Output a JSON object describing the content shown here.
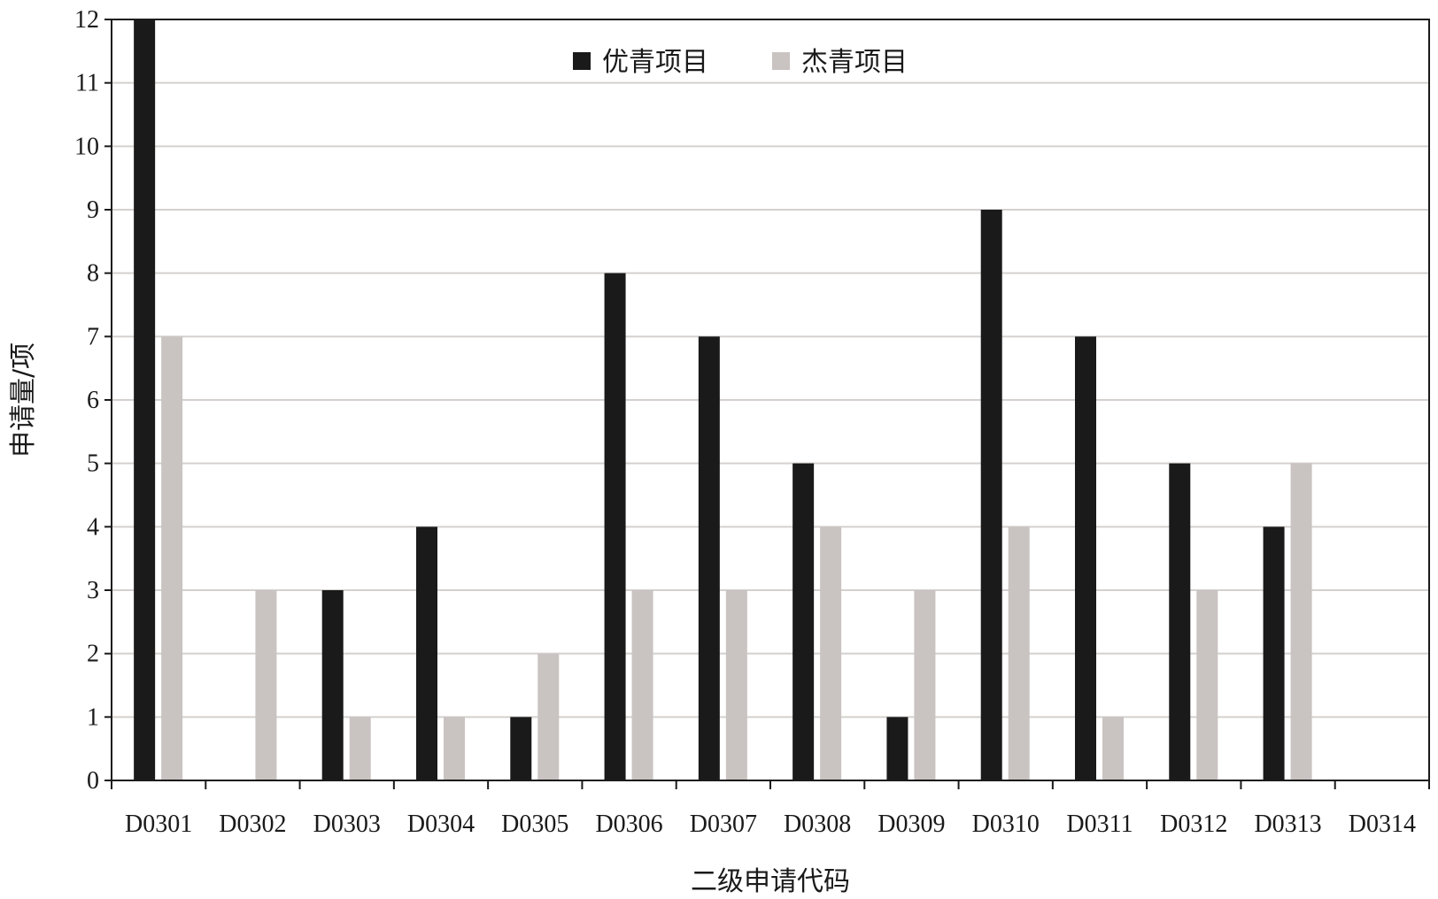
{
  "chart_data": {
    "type": "bar",
    "categories": [
      "D0301",
      "D0302",
      "D0303",
      "D0304",
      "D0305",
      "D0306",
      "D0307",
      "D0308",
      "D0309",
      "D0310",
      "D0311",
      "D0312",
      "D0313",
      "D0314"
    ],
    "series": [
      {
        "name": "优青项目",
        "color": "#1a1a1a",
        "values": [
          12,
          0,
          3,
          4,
          1,
          8,
          7,
          5,
          1,
          9,
          7,
          5,
          4,
          0
        ]
      },
      {
        "name": "杰青项目",
        "color": "#c9c3c1",
        "values": [
          7,
          3,
          1,
          1,
          2,
          3,
          3,
          4,
          3,
          4,
          1,
          3,
          5,
          0
        ]
      }
    ],
    "xlabel": "二级申请代码",
    "ylabel": "申请量/项",
    "ylim": [
      0,
      12
    ],
    "yticks": [
      0,
      1,
      2,
      3,
      4,
      5,
      6,
      7,
      8,
      9,
      10,
      11,
      12
    ],
    "grid": true,
    "legend_position": "top-center"
  }
}
